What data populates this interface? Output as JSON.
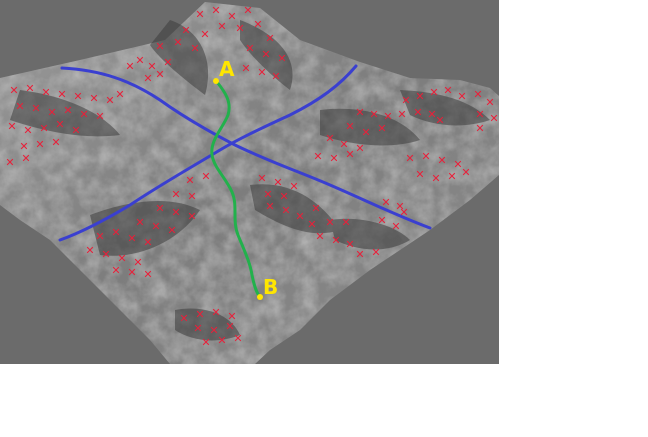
{
  "map": {
    "background_color": "#6b6b6b",
    "terrain_color": "#8a8a8a",
    "road_color": "#3a3fd0",
    "path_color": "#22b14c",
    "marker_color": "#ffe600",
    "hazard_color": "#e8203a",
    "hazard_symbol": "x-mark-icon",
    "point_a": {
      "label": "A"
    },
    "point_b": {
      "label": "B"
    }
  }
}
